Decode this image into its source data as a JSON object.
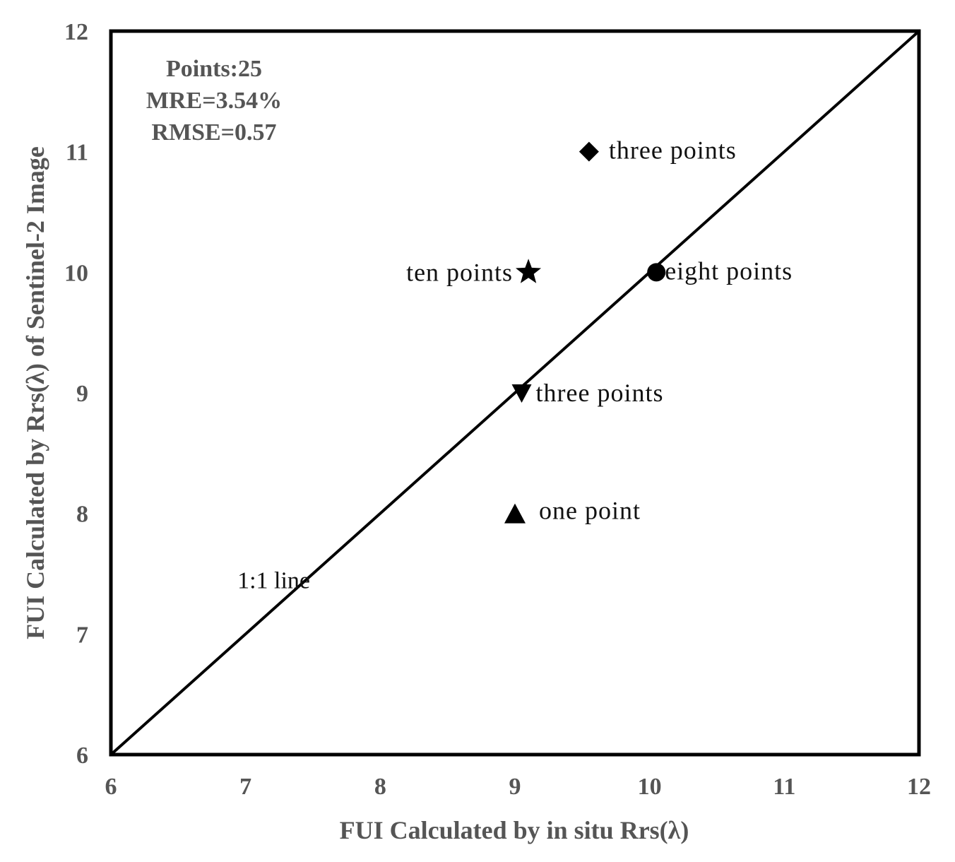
{
  "chart_data": {
    "type": "scatter",
    "xlabel": "FUI Calculated by in situ Rrs(λ)",
    "ylabel": "FUI Calculated by Rrs(λ) of Sentinel-2 Image",
    "xlim": [
      6,
      12
    ],
    "ylim": [
      6,
      12
    ],
    "xticks": [
      "6",
      "7",
      "8",
      "9",
      "10",
      "11",
      "12"
    ],
    "yticks": [
      "6",
      "7",
      "8",
      "9",
      "10",
      "11",
      "12"
    ],
    "grid": false,
    "stats": [
      "Points:25",
      "MRE=3.54%",
      "RMSE=0.57"
    ],
    "reference_line": {
      "label": "1:1 line",
      "from": [
        6,
        6
      ],
      "to": [
        12,
        12
      ]
    },
    "points": [
      {
        "x": 9.55,
        "y": 11,
        "marker": "diamond",
        "label": "three points"
      },
      {
        "x": 9.1,
        "y": 10,
        "marker": "star",
        "label": "ten points"
      },
      {
        "x": 10.05,
        "y": 10,
        "marker": "circle",
        "label": "eight points"
      },
      {
        "x": 9.05,
        "y": 9,
        "marker": "triangle-down",
        "label": "three points"
      },
      {
        "x": 9.0,
        "y": 8,
        "marker": "triangle-up",
        "label": "one point"
      }
    ],
    "color": "#000000"
  }
}
